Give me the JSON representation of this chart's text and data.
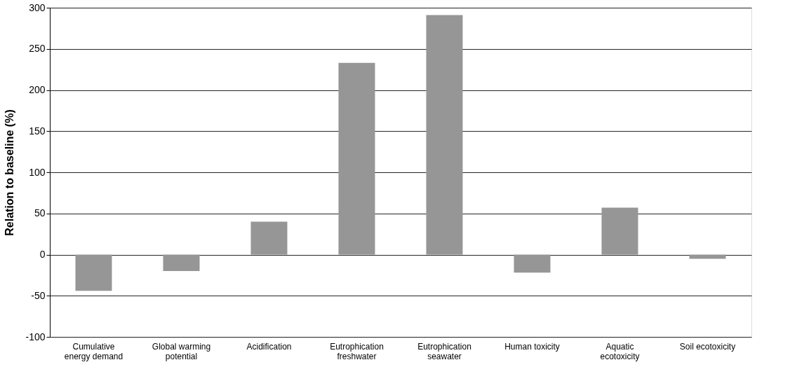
{
  "chart_data": {
    "type": "bar",
    "ylabel": "Relation to baseline  (%)",
    "categories": [
      "Cumulative energy demand",
      "Global warming potential",
      "Acidification",
      "Eutrophication freshwater",
      "Eutrophication seawater",
      "Human toxicity",
      "Aquatic ecotoxicity",
      "Soil ecotoxicity"
    ],
    "values": [
      -44,
      -20,
      40,
      233,
      291,
      -22,
      57,
      -5
    ],
    "color": "#969696",
    "ylim": [
      -100,
      300
    ],
    "yticks": [
      -100,
      -50,
      0,
      50,
      100,
      150,
      200,
      250,
      300
    ],
    "grid": "y"
  }
}
